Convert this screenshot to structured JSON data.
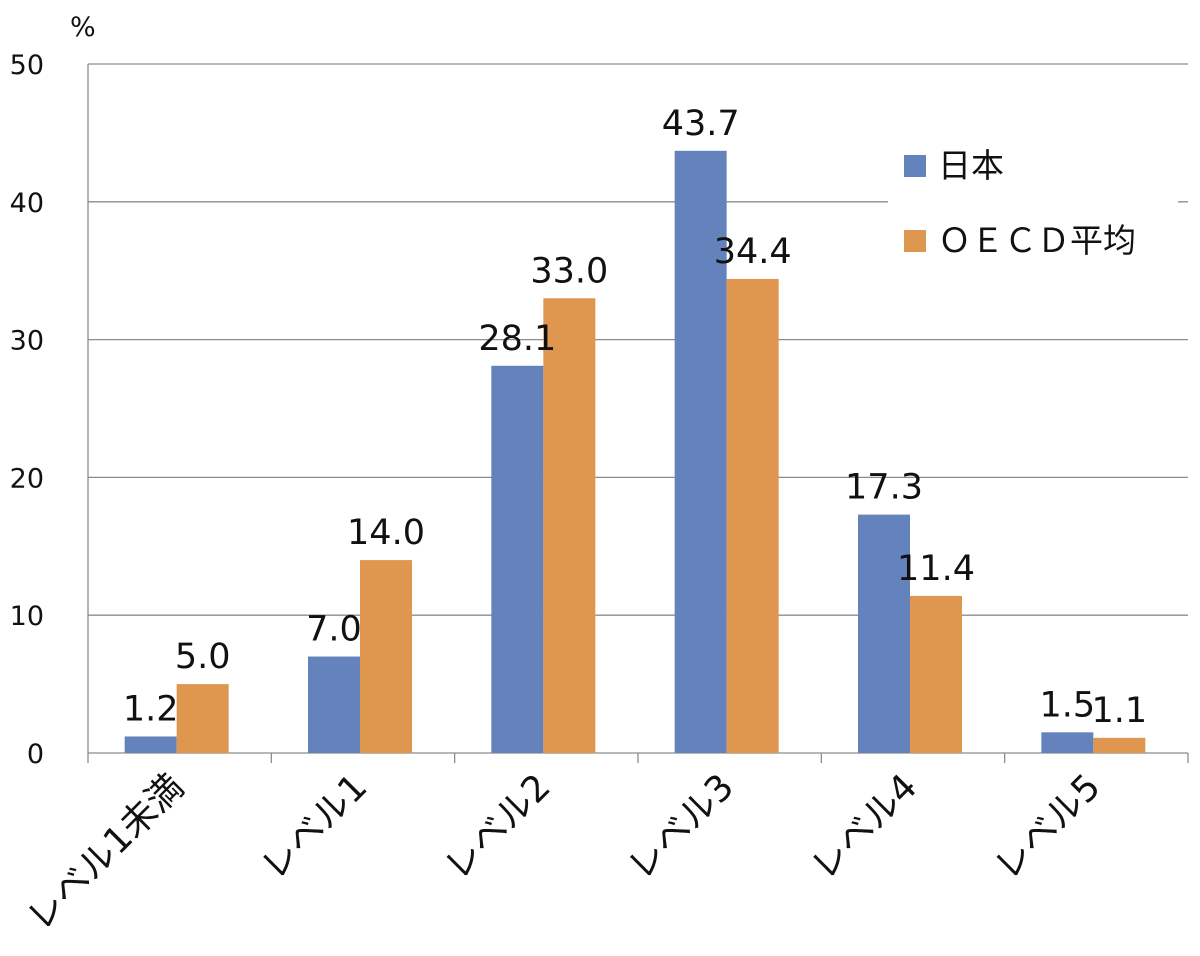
{
  "chart_data": {
    "type": "bar",
    "title": "",
    "xlabel": "",
    "ylabel": "%",
    "ylim": [
      0,
      50
    ],
    "yticks": [
      0,
      10,
      20,
      30,
      40,
      50
    ],
    "grid": true,
    "legend_position": "top-right",
    "categories": [
      "レベル1未満",
      "レベル1",
      "レベル2",
      "レベル3",
      "レベル4",
      "レベル5"
    ],
    "series": [
      {
        "name": "日本",
        "color": "#6482bb",
        "values": [
          1.2,
          7.0,
          28.1,
          43.7,
          17.3,
          1.5
        ]
      },
      {
        "name": "ＯＥＣＤ平均",
        "color": "#df964f",
        "values": [
          5.0,
          14.0,
          33.0,
          34.4,
          11.4,
          1.1
        ]
      }
    ],
    "data_labels": [
      [
        "1.2",
        "7.0",
        "28.1",
        "43.7",
        "17.3",
        "1.5"
      ],
      [
        "5.0",
        "14.0",
        "33.0",
        "34.4",
        "11.4",
        "1.1"
      ]
    ]
  }
}
